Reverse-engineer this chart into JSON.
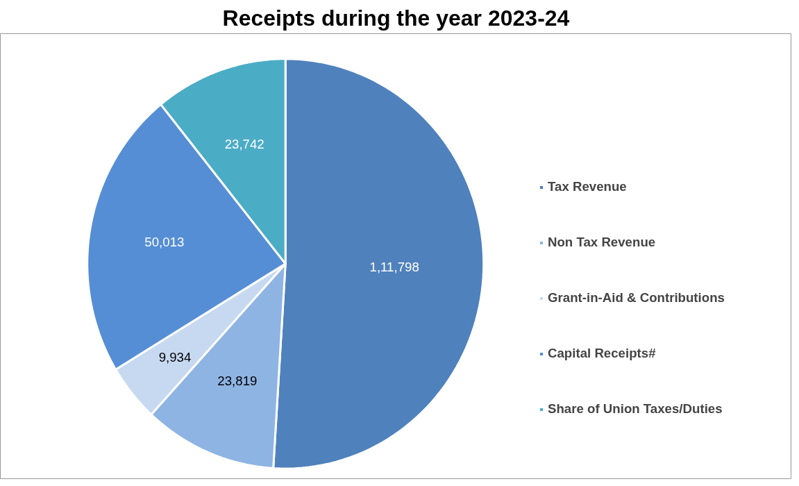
{
  "chart_data": {
    "type": "pie",
    "title": "Receipts during the year 2023-24",
    "categories": [
      "Tax Revenue",
      "Non Tax Revenue",
      "Grant-in-Aid & Contributions",
      "Capital Receipts#",
      "Share of Union Taxes/Duties"
    ],
    "values": [
      111798,
      23819,
      9934,
      50013,
      23742
    ],
    "colors": [
      "#4f81bd",
      "#8eb4e3",
      "#c6d9f1",
      "#558ed5",
      "#4bacc6"
    ],
    "value_labels": [
      "1,11,798",
      "23,819",
      "9,934",
      "50,013",
      "23,742"
    ],
    "legend": "right"
  }
}
